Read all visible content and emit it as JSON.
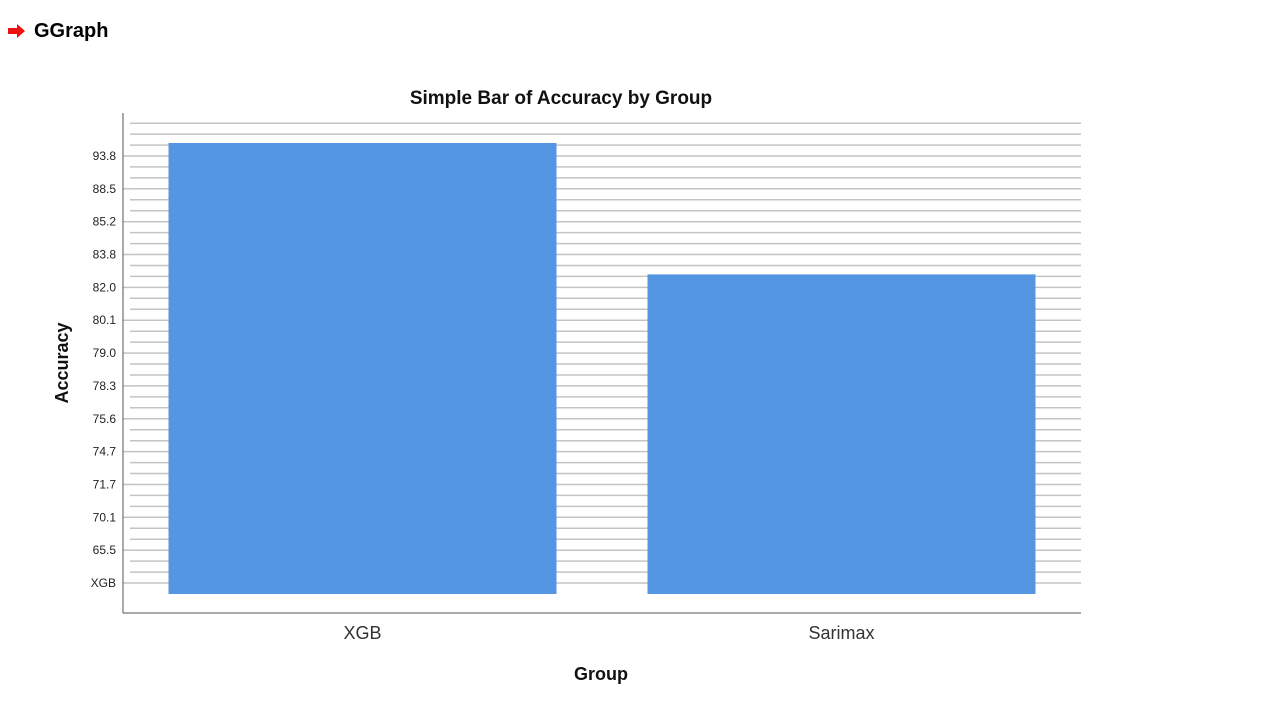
{
  "header": {
    "icon": "arrow-right-icon",
    "title": "GGraph",
    "icon_color": "#ee1111"
  },
  "chart_data": {
    "type": "bar",
    "title": "Simple Bar of Accuracy by Group",
    "xlabel": "Group",
    "ylabel": "Accuracy",
    "categories": [
      "XGB",
      "Sarimax"
    ],
    "values": [
      "93.8",
      "82.0"
    ],
    "y_axis_type": "categorical",
    "y_tick_labels_bottom_to_top": [
      "XGB",
      "65.5",
      "70.1",
      "71.7",
      "74.7",
      "75.6",
      "78.3",
      "79.0",
      "80.1",
      "82.0",
      "83.8",
      "85.2",
      "88.5",
      "93.8"
    ],
    "grid": true,
    "legend": "none",
    "colors": {
      "bar": "#5596e3",
      "grid": "#c4c4c4",
      "axis": "#555555"
    }
  }
}
